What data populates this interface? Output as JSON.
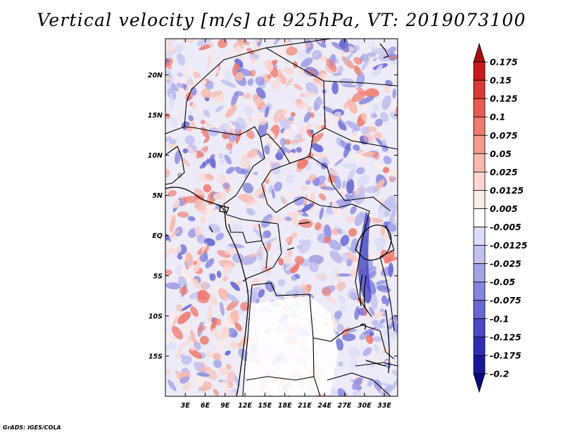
{
  "title": "Vertical velocity [m/s] at 925hPa, VT: 2019073100",
  "footer": "GrADS: IGES/COLA",
  "map": {
    "lon_range": [
      0,
      35
    ],
    "lat_range": [
      -20,
      24.5
    ],
    "lon_ticks": [
      "3E",
      "6E",
      "9E",
      "12E",
      "15E",
      "18E",
      "21E",
      "24E",
      "27E",
      "30E",
      "33E"
    ],
    "lat_ticks": [
      "20N",
      "15N",
      "10N",
      "5N",
      "EQ",
      "5S",
      "10S",
      "15S"
    ]
  },
  "colorbar": {
    "labels": [
      "0.175",
      "0.15",
      "0.125",
      "0.1",
      "0.075",
      "0.05",
      "0.025",
      "0.0125",
      "0.005",
      "-0.005",
      "-0.0125",
      "-0.025",
      "-0.05",
      "-0.075",
      "-0.1",
      "-0.125",
      "-0.175",
      "-0.2"
    ],
    "colors": [
      "#a50f15",
      "#c8191d",
      "#dc3a36",
      "#e95a50",
      "#ef7a6e",
      "#f49a8e",
      "#f8b9ae",
      "#fcd6cf",
      "#fdebe7",
      "#ffffff",
      "#dcdcf8",
      "#c1c1f0",
      "#a3a3e8",
      "#8585df",
      "#6868d4",
      "#4a4ac6",
      "#2e2eb4",
      "#18189c",
      "#0a0a80"
    ]
  }
}
